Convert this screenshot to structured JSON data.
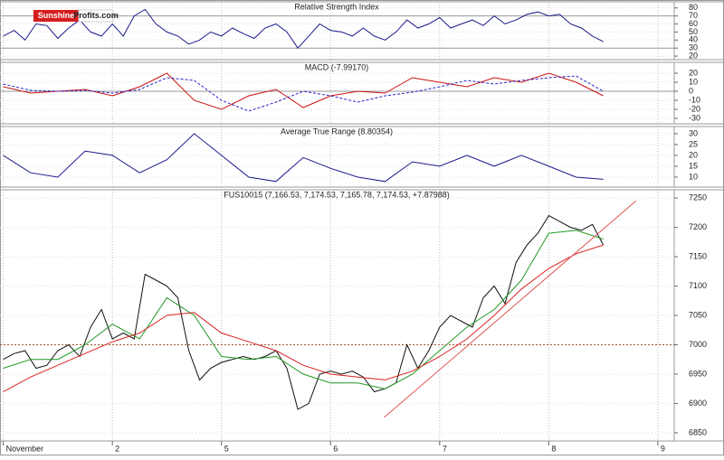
{
  "logo": [
    "Sunshine",
    "Profits.com"
  ],
  "chart_data": [
    {
      "type": "line",
      "title": "Relative Strength Index",
      "xlim": [
        -0.03,
        6.15
      ],
      "ylim": [
        15.6,
        87.6
      ],
      "yticks": [
        20,
        30,
        40,
        50,
        60,
        70,
        80
      ],
      "hlines": [
        70,
        30
      ],
      "hline_color": "#999999",
      "hline_dash": false,
      "series": [
        {
          "color": "#1a1a8c",
          "dash": false,
          "x": [
            0,
            0.1,
            0.2,
            0.3,
            0.4,
            0.5,
            0.6,
            0.7,
            0.8,
            0.9,
            1,
            1.1,
            1.2,
            1.3,
            1.4,
            1.5,
            1.6,
            1.7,
            1.8,
            1.9,
            2,
            2.1,
            2.2,
            2.3,
            2.4,
            2.5,
            2.6,
            2.7,
            2.8,
            2.9,
            3,
            3.1,
            3.2,
            3.3,
            3.4,
            3.5,
            3.6,
            3.7,
            3.8,
            3.9,
            4,
            4.1,
            4.2,
            4.3,
            4.4,
            4.5,
            4.6,
            4.7,
            4.8,
            4.9,
            5,
            5.1,
            5.2,
            5.3,
            5.4,
            5.5
          ],
          "values": [
            45,
            52,
            40,
            60,
            58,
            42,
            55,
            65,
            50,
            45,
            60,
            45,
            70,
            78,
            60,
            50,
            45,
            35,
            40,
            50,
            45,
            55,
            48,
            42,
            55,
            60,
            50,
            30,
            45,
            60,
            52,
            50,
            45,
            55,
            45,
            40,
            50,
            65,
            55,
            60,
            68,
            55,
            60,
            65,
            58,
            70,
            60,
            65,
            72,
            75,
            70,
            72,
            60,
            55,
            45,
            38
          ]
        }
      ]
    },
    {
      "type": "line",
      "title": "MACD (-7.99170)",
      "xlim": [
        -0.03,
        6.15
      ],
      "ylim": [
        -36,
        32
      ],
      "yticks": [
        -30,
        -20,
        -10,
        0,
        10,
        20
      ],
      "hlines": [
        0
      ],
      "hline_color": "#999999",
      "hline_dash": false,
      "series": [
        {
          "color": "#cc1111",
          "dash": false,
          "x": [
            0,
            0.25,
            0.5,
            0.75,
            1,
            1.25,
            1.5,
            1.75,
            2,
            2.25,
            2.5,
            2.75,
            3,
            3.25,
            3.5,
            3.75,
            4,
            4.25,
            4.5,
            4.75,
            5,
            5.25,
            5.5
          ],
          "values": [
            5,
            -2,
            0,
            2,
            -5,
            5,
            20,
            -10,
            -20,
            -5,
            2,
            -18,
            -5,
            0,
            -2,
            15,
            10,
            5,
            15,
            10,
            20,
            10,
            -5
          ]
        },
        {
          "color": "#2222cc",
          "dash": true,
          "x": [
            0,
            0.25,
            0.5,
            0.75,
            1,
            1.25,
            1.5,
            1.75,
            2,
            2.25,
            2.5,
            2.75,
            3,
            3.25,
            3.5,
            3.75,
            4,
            4.25,
            4.5,
            4.75,
            5,
            5.25,
            5.5
          ],
          "values": [
            8,
            1,
            0,
            1,
            -2,
            2,
            15,
            12,
            -10,
            -22,
            -12,
            0,
            -5,
            -12,
            -5,
            -1,
            5,
            12,
            8,
            12,
            15,
            17,
            0
          ]
        }
      ]
    },
    {
      "type": "line",
      "title": "Average True Range (8.80354)",
      "xlim": [
        -0.03,
        6.15
      ],
      "ylim": [
        5.4,
        33.3
      ],
      "yticks": [
        10,
        15,
        20,
        25,
        30
      ],
      "series": [
        {
          "color": "#1a1a8c",
          "dash": false,
          "x": [
            0,
            0.25,
            0.5,
            0.75,
            1,
            1.25,
            1.5,
            1.75,
            2,
            2.25,
            2.5,
            2.75,
            3,
            3.25,
            3.5,
            3.75,
            4,
            4.25,
            4.5,
            4.75,
            5,
            5.25,
            5.5
          ],
          "values": [
            20,
            12,
            10,
            22,
            20,
            12,
            18,
            30,
            20,
            10,
            8,
            19,
            14,
            10,
            8,
            17,
            15,
            20,
            15,
            20,
            15,
            10,
            9
          ]
        }
      ]
    },
    {
      "type": "line",
      "title": "FUS10015 (7,166.53, 7,174.53, 7,165.78, 7,174.53, +7.87988)",
      "xlim": [
        -0.03,
        6.15
      ],
      "ylim": [
        6836,
        7264
      ],
      "yticks": [
        6850,
        6900,
        6950,
        7000,
        7050,
        7100,
        7150,
        7200,
        7250
      ],
      "xticks": [
        {
          "value": 0,
          "label": "November"
        },
        {
          "value": 1,
          "label": "2"
        },
        {
          "value": 2,
          "label": "5"
        },
        {
          "value": 3,
          "label": "6"
        },
        {
          "value": 4,
          "label": "7"
        },
        {
          "value": 5,
          "label": "8"
        },
        {
          "value": 6,
          "label": "9"
        }
      ],
      "hlines": [
        7000
      ],
      "hline_color": "#a0522d",
      "hline_dash": true,
      "series": [
        {
          "color": "#111111",
          "dash": false,
          "x": [
            0,
            0.1,
            0.2,
            0.3,
            0.4,
            0.5,
            0.6,
            0.7,
            0.8,
            0.9,
            1,
            1.1,
            1.2,
            1.3,
            1.4,
            1.5,
            1.6,
            1.7,
            1.8,
            1.9,
            2,
            2.1,
            2.2,
            2.3,
            2.4,
            2.5,
            2.6,
            2.7,
            2.8,
            2.9,
            3,
            3.1,
            3.2,
            3.3,
            3.4,
            3.5,
            3.6,
            3.7,
            3.8,
            3.9,
            4,
            4.1,
            4.2,
            4.3,
            4.4,
            4.5,
            4.6,
            4.7,
            4.8,
            4.9,
            5,
            5.1,
            5.2,
            5.3,
            5.4,
            5.5
          ],
          "values": [
            6975,
            6985,
            6990,
            6960,
            6965,
            6990,
            7000,
            6980,
            7030,
            7060,
            7010,
            7020,
            7010,
            7120,
            7110,
            7100,
            7080,
            6990,
            6940,
            6960,
            6970,
            6975,
            6980,
            6975,
            6980,
            6990,
            6960,
            6890,
            6900,
            6950,
            6955,
            6950,
            6955,
            6945,
            6920,
            6925,
            6935,
            7000,
            6960,
            6990,
            7030,
            7050,
            7040,
            7030,
            7080,
            7100,
            7070,
            7140,
            7170,
            7190,
            7220,
            7210,
            7200,
            7195,
            7205,
            7170
          ]
        },
        {
          "color": "#229922",
          "dash": false,
          "x": [
            0,
            0.25,
            0.5,
            0.75,
            1,
            1.25,
            1.5,
            1.75,
            2,
            2.25,
            2.5,
            2.75,
            3,
            3.25,
            3.5,
            3.75,
            4,
            4.25,
            4.5,
            4.75,
            5,
            5.25,
            5.5
          ],
          "values": [
            6960,
            6975,
            6975,
            7000,
            7035,
            7010,
            7080,
            7050,
            6980,
            6975,
            6980,
            6950,
            6935,
            6935,
            6925,
            6950,
            6990,
            7030,
            7060,
            7110,
            7190,
            7195,
            7180
          ]
        },
        {
          "color": "#dd2222",
          "dash": false,
          "x": [
            0,
            0.25,
            0.5,
            0.75,
            1,
            1.25,
            1.5,
            1.75,
            2,
            2.25,
            2.5,
            2.75,
            3,
            3.25,
            3.5,
            3.75,
            4,
            4.25,
            4.5,
            4.75,
            5,
            5.25,
            5.5
          ],
          "values": [
            6920,
            6945,
            6965,
            6985,
            7005,
            7020,
            7050,
            7055,
            7020,
            7005,
            6990,
            6965,
            6950,
            6945,
            6940,
            6955,
            6980,
            7010,
            7050,
            7095,
            7130,
            7155,
            7170
          ]
        },
        {
          "color": "#e05555",
          "dash": false,
          "x": [
            3.49,
            5.8
          ],
          "values": [
            6876,
            7245
          ]
        }
      ]
    }
  ]
}
